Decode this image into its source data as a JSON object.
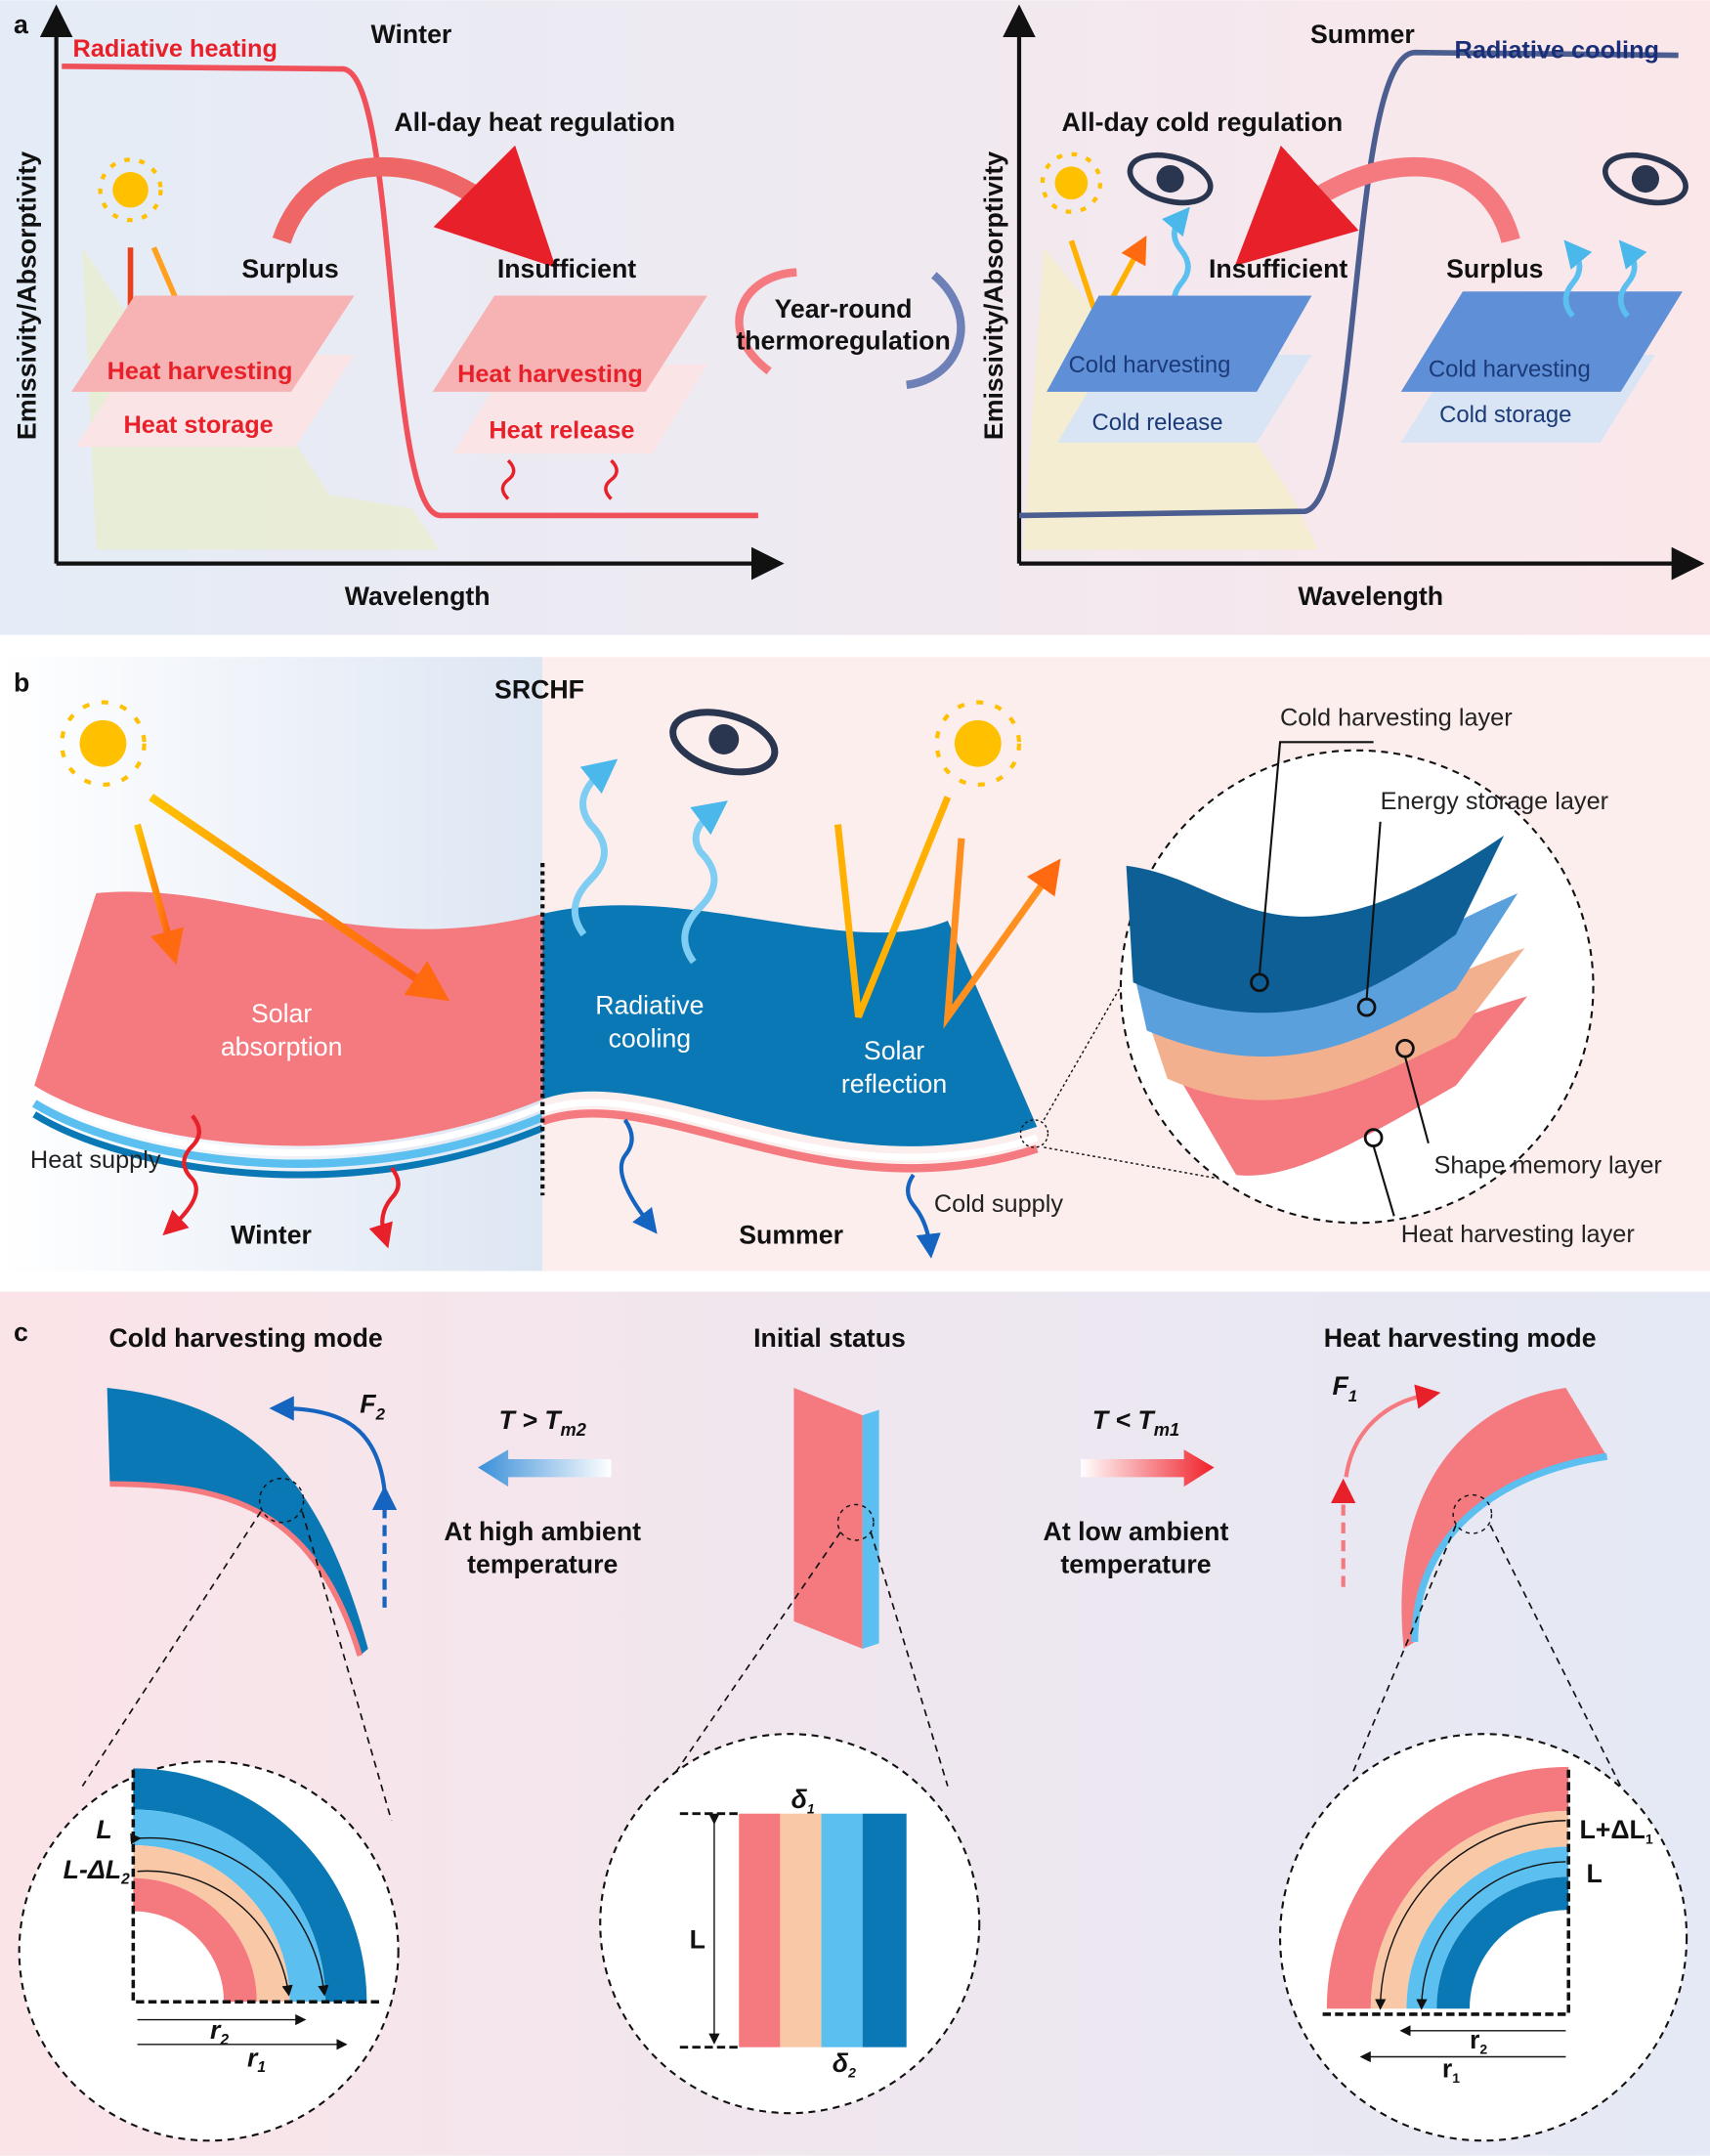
{
  "panel_a": {
    "label": "a",
    "winter": {
      "season": "Winter",
      "curve_label": "Radiative heating",
      "regulation": "All-day heat regulation",
      "surplus": "Surplus",
      "insufficient": "Insufficient",
      "heat_harvesting_1": "Heat harvesting",
      "heat_storage": "Heat storage",
      "heat_harvesting_2": "Heat harvesting",
      "heat_release": "Heat release",
      "y_axis": "Emissivity/Absorptivity",
      "x_axis": "Wavelength"
    },
    "year_round": {
      "line1": "Year-round",
      "line2": "thermoregulation"
    },
    "summer": {
      "season": "Summer",
      "curve_label": "Radiative cooling",
      "regulation": "All-day cold regulation",
      "insufficient": "Insufficient",
      "surplus": "Surplus",
      "cold_harvesting_1": "Cold harvesting",
      "cold_release": "Cold release",
      "cold_harvesting_2": "Cold harvesting",
      "cold_storage": "Cold storage",
      "y_axis": "Emissivity/Absorptivity",
      "x_axis": "Wavelength"
    }
  },
  "panel_b": {
    "label": "b",
    "title": "SRCHF",
    "solar_absorption": [
      "Solar",
      "absorption"
    ],
    "radiative_cooling": [
      "Radiative",
      "cooling"
    ],
    "solar_reflection": [
      "Solar",
      "reflection"
    ],
    "heat_supply": "Heat supply",
    "cold_supply": "Cold supply",
    "winter": "Winter",
    "summer": "Summer",
    "layers": {
      "cold": "Cold harvesting layer",
      "energy": "Energy storage layer",
      "shape": "Shape memory layer",
      "heat": "Heat harvesting layer"
    }
  },
  "panel_c": {
    "label": "c",
    "cold_mode": "Cold harvesting mode",
    "initial": "Initial status",
    "heat_mode": "Heat harvesting mode",
    "high_cond": {
      "t": "T > T",
      "sub": "m2",
      "line1": "At high ambient",
      "line2": "temperature"
    },
    "low_cond": {
      "t": "T < T",
      "sub": "m1",
      "line1": "At low ambient",
      "line2": "temperature"
    },
    "f2": {
      "f": "F",
      "sub": "2"
    },
    "f1": {
      "f": "F",
      "sub": "1"
    },
    "left_dims": {
      "L": "L",
      "L_minus": "L-ΔL",
      "L_minus_sub": "2",
      "r2": "r",
      "r2_sub": "2",
      "r1": "r",
      "r1_sub": "1"
    },
    "mid_dims": {
      "L": "L",
      "d1": "δ",
      "d1_sub": "1",
      "d2": "δ",
      "d2_sub": "2"
    },
    "right_dims": {
      "L_plus": "L+ΔL",
      "L_plus_sub": "1",
      "L": "L",
      "r2": "r",
      "r2_sub": "2",
      "r1": "r",
      "r1_sub": "1"
    }
  },
  "colors": {
    "red": "#e8202a",
    "pink": "#f47a80",
    "peach": "#f9c8a6",
    "light_blue": "#5bbff0",
    "dark_blue": "#0a78b4",
    "navy": "#1b3a78"
  }
}
